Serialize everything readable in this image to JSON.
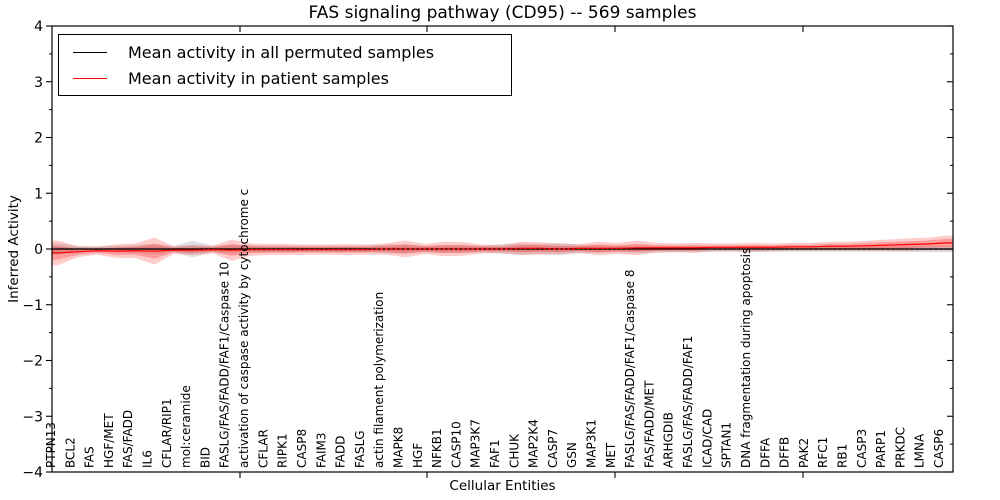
{
  "chart_data": {
    "type": "line",
    "title": "FAS signaling pathway (CD95) -- 569 samples",
    "xlabel": "Cellular Entities",
    "ylabel": "Inferred Activity",
    "ylim": [
      -4,
      4
    ],
    "yticks": [
      4,
      3,
      2,
      1,
      0,
      -1,
      -2,
      -3,
      -4
    ],
    "yticks_minor": [
      3.5,
      2.5,
      1.5,
      0.5,
      -0.5,
      -1.5,
      -2.5,
      -3.5
    ],
    "grid": false,
    "legend_position": "upper left",
    "zero_reference_line": {
      "y": 0,
      "style": "dotted",
      "color": "#000000"
    },
    "categories": [
      "PTPN13",
      "BCL2",
      "FAS",
      "HGF/MET",
      "FAS/FADD",
      "IL6",
      "CFLAR/RIP1",
      "mol:ceramide",
      "BID",
      "FASLG/FAS/FADD/FAF1/Caspase 10",
      "activation of caspase activity by cytochrome c",
      "CFLAR",
      "RIPK1",
      "CASP8",
      "FAIM3",
      "FADD",
      "FASLG",
      "actin filament polymerization",
      "MAPK8",
      "HGF",
      "NFKB1",
      "CASP10",
      "MAP3K7",
      "FAF1",
      "CHUK",
      "MAP2K4",
      "CASP7",
      "GSN",
      "MAP3K1",
      "MET",
      "FASLG/FAS/FADD/FAF1/Caspase 8",
      "FAS/FADD/MET",
      "ARHGDIB",
      "FASLG/FAS/FADD/FAF1",
      "ICAD/CAD",
      "SPTAN1",
      "DNA fragmentation during apoptosis",
      "DFFA",
      "DFFB",
      "PAK2",
      "RFC1",
      "RB1",
      "CASP3",
      "PARP1",
      "PRKDC",
      "LMNA",
      "CASP6"
    ],
    "series": [
      {
        "name": "Mean activity in all permuted samples",
        "color": "#000000",
        "band_color": "#787878",
        "values": [
          0,
          0,
          0,
          0,
          0,
          0,
          0,
          0,
          0,
          0,
          0,
          0,
          0,
          0,
          0,
          0,
          0,
          0,
          0,
          0,
          0,
          0,
          0,
          0,
          0,
          0,
          0,
          0,
          0,
          0,
          0,
          0,
          0,
          0,
          0,
          0,
          0,
          0,
          0,
          0,
          0,
          0,
          0,
          0,
          0,
          0,
          0
        ],
        "band_halfwidth": [
          0.1,
          0.06,
          0.05,
          0.06,
          0.07,
          0.09,
          0.06,
          0.15,
          0.06,
          0.08,
          0.07,
          0.06,
          0.06,
          0.06,
          0.06,
          0.06,
          0.06,
          0.08,
          0.08,
          0.06,
          0.07,
          0.07,
          0.06,
          0.09,
          0.1,
          0.09,
          0.11,
          0.08,
          0.07,
          0.06,
          0.07,
          0.06,
          0.06,
          0.06,
          0.05,
          0.05,
          0.06,
          0.05,
          0.05,
          0.05,
          0.05,
          0.05,
          0.05,
          0.05,
          0.06,
          0.06,
          0.06
        ]
      },
      {
        "name": "Mean activity in patient samples",
        "color": "#ff0000",
        "band_color": "#ff0000",
        "values": [
          -0.07,
          -0.05,
          -0.03,
          -0.04,
          -0.03,
          -0.04,
          -0.02,
          -0.02,
          -0.01,
          -0.02,
          -0.01,
          -0.01,
          -0.01,
          -0.01,
          -0.01,
          -0.01,
          -0.01,
          0,
          0,
          0,
          0,
          0,
          0,
          0,
          0.01,
          0.01,
          0,
          0.01,
          0.01,
          0.01,
          0.02,
          0.02,
          0.02,
          0.02,
          0.03,
          0.03,
          0.03,
          0.03,
          0.04,
          0.04,
          0.05,
          0.05,
          0.06,
          0.07,
          0.08,
          0.09,
          0.11
        ],
        "band_halfwidth": [
          0.22,
          0.1,
          0.07,
          0.12,
          0.13,
          0.24,
          0.07,
          0.09,
          0.07,
          0.19,
          0.11,
          0.1,
          0.1,
          0.09,
          0.09,
          0.1,
          0.09,
          0.1,
          0.15,
          0.09,
          0.13,
          0.12,
          0.08,
          0.07,
          0.12,
          0.11,
          0.09,
          0.08,
          0.12,
          0.1,
          0.13,
          0.09,
          0.08,
          0.09,
          0.07,
          0.07,
          0.08,
          0.07,
          0.07,
          0.07,
          0.08,
          0.08,
          0.09,
          0.1,
          0.11,
          0.11,
          0.13
        ]
      }
    ]
  },
  "legend": {
    "entries": [
      {
        "label": "Mean activity in all permuted samples",
        "color": "#000000"
      },
      {
        "label": "Mean activity in patient samples",
        "color": "#ff0000"
      }
    ]
  }
}
